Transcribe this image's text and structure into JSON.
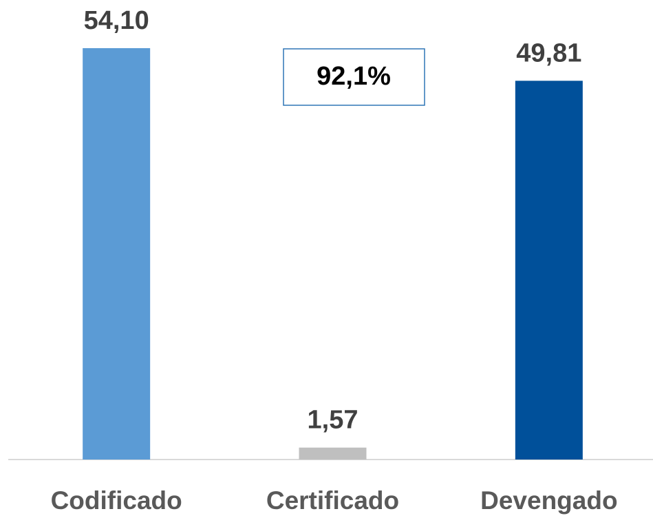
{
  "chart_data": {
    "type": "bar",
    "categories": [
      "Codificado",
      "Certificado",
      "Devengado"
    ],
    "values": [
      54.1,
      1.57,
      49.81
    ],
    "value_labels": [
      "54,10",
      "1,57",
      "49,81"
    ],
    "colors": [
      "#5b9bd5",
      "#bfbfbf",
      "#00509a"
    ],
    "annotation": "92,1%"
  }
}
